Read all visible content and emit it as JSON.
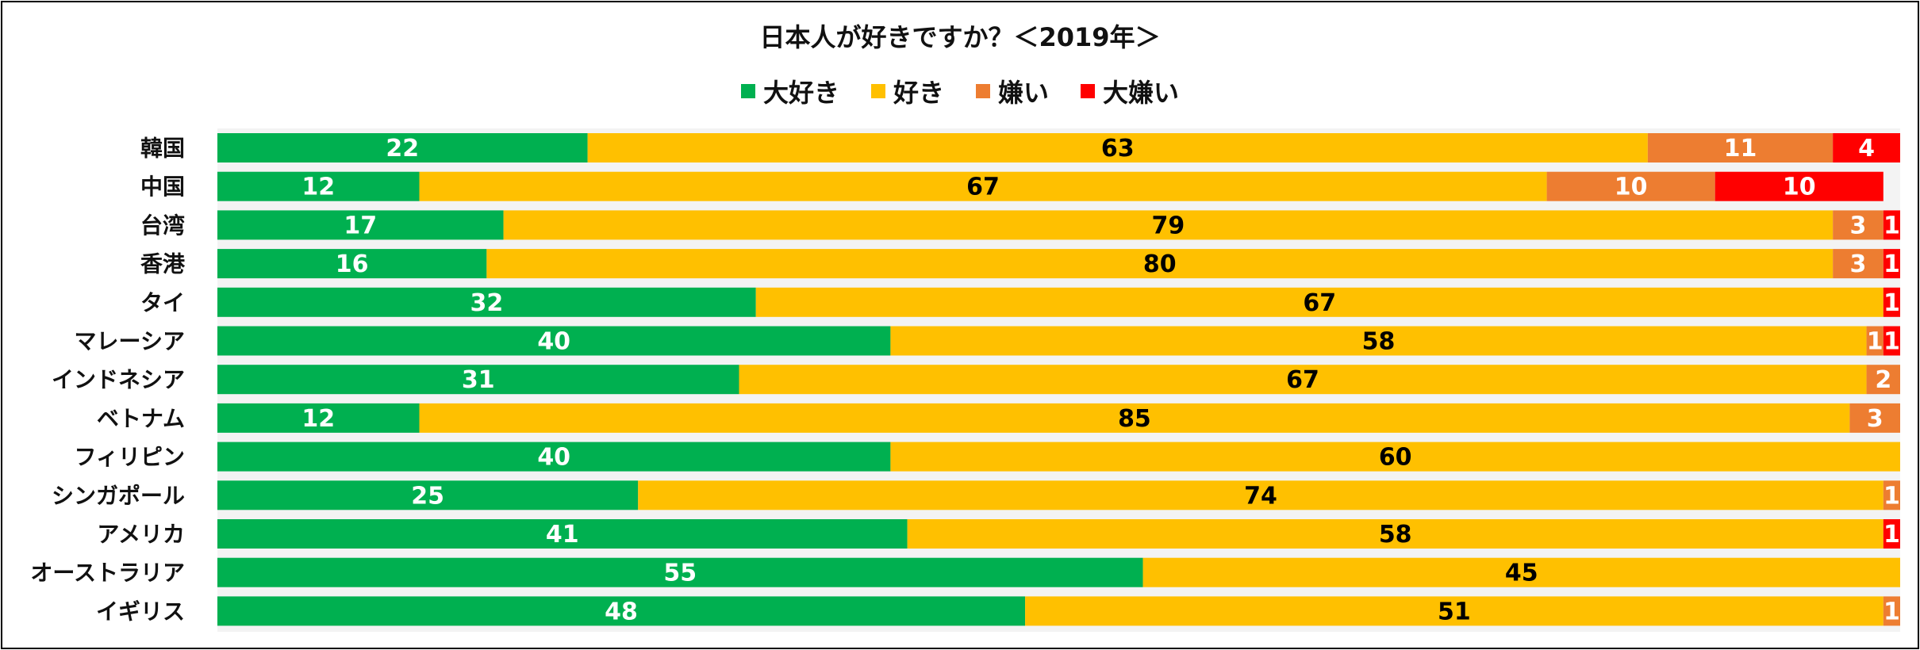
{
  "chart_data": {
    "type": "bar",
    "orientation": "horizontal",
    "stacked": true,
    "title": "日本人が好きですか？＜2019年＞",
    "legend_position": "top",
    "xlim": [
      0,
      100
    ],
    "categories": [
      "韓国",
      "中国",
      "台湾",
      "香港",
      "タイ",
      "マレーシア",
      "インドネシア",
      "ベトナム",
      "フィリピン",
      "シンガポール",
      "アメリカ",
      "オーストラリア",
      "イギリス"
    ],
    "series": [
      {
        "name": "大好き",
        "color": "#00B050",
        "label_color": "#ffffff",
        "values": [
          22,
          12,
          17,
          16,
          32,
          40,
          31,
          12,
          40,
          25,
          41,
          55,
          48
        ]
      },
      {
        "name": "好き",
        "color": "#FFC000",
        "label_color": "#000000",
        "values": [
          63,
          67,
          79,
          80,
          67,
          58,
          67,
          85,
          60,
          74,
          58,
          45,
          51
        ]
      },
      {
        "name": "嫌い",
        "color": "#ED7D31",
        "label_color": "#ffffff",
        "values": [
          11,
          10,
          3,
          3,
          null,
          1,
          2,
          3,
          null,
          1,
          null,
          null,
          1
        ]
      },
      {
        "name": "大嫌い",
        "color": "#FF0000",
        "label_color": "#ffffff",
        "values": [
          4,
          10,
          1,
          1,
          1,
          1,
          null,
          null,
          null,
          null,
          1,
          null,
          null
        ]
      }
    ]
  }
}
